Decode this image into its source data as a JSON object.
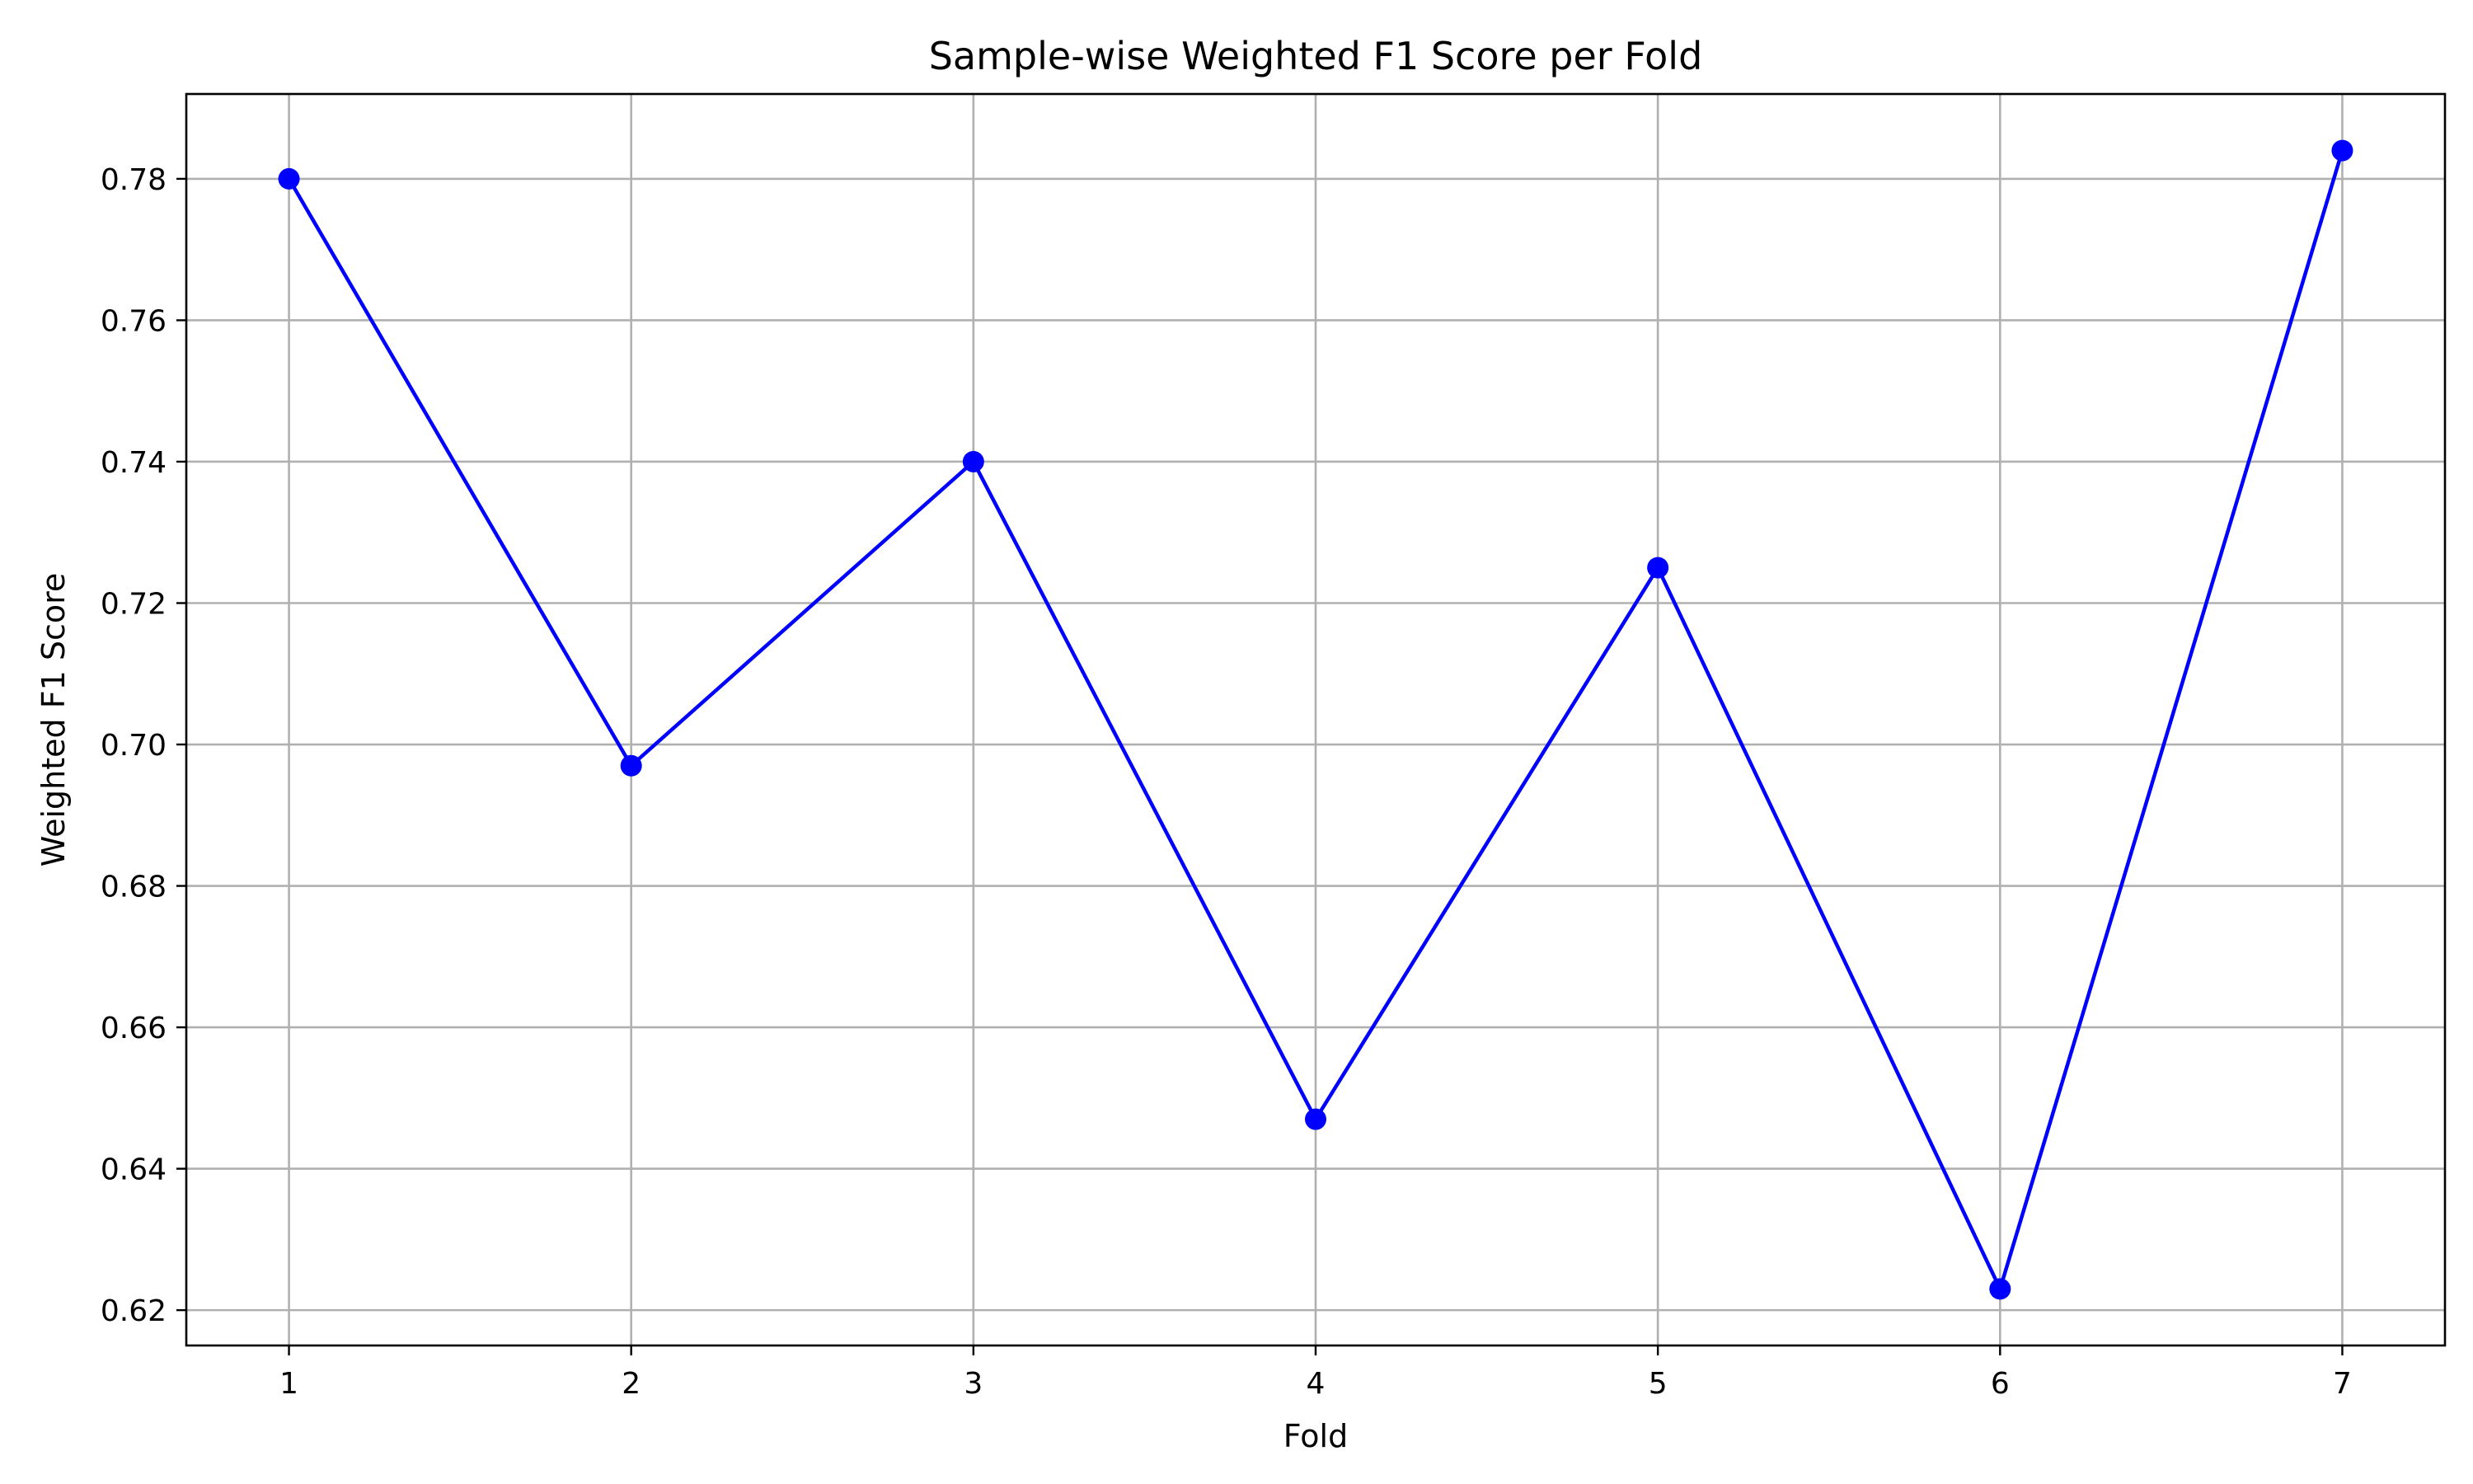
{
  "chart_data": {
    "type": "line",
    "title": "Sample-wise Weighted F1 Score per Fold",
    "xlabel": "Fold",
    "ylabel": "Weighted F1 Score",
    "x": [
      1,
      2,
      3,
      4,
      5,
      6,
      7
    ],
    "x_ticks": [
      "1",
      "2",
      "3",
      "4",
      "5",
      "6",
      "7"
    ],
    "xlim": [
      0.7,
      7.3
    ],
    "ylim": [
      0.615,
      0.792
    ],
    "y_ticks": [
      "0.62",
      "0.64",
      "0.66",
      "0.68",
      "0.70",
      "0.72",
      "0.74",
      "0.76",
      "0.78"
    ],
    "series": [
      {
        "values": [
          0.78,
          0.697,
          0.74,
          0.647,
          0.725,
          0.623,
          0.784
        ],
        "color": "#0000ff",
        "marker": "circle"
      }
    ],
    "grid": true,
    "legend": "none"
  }
}
